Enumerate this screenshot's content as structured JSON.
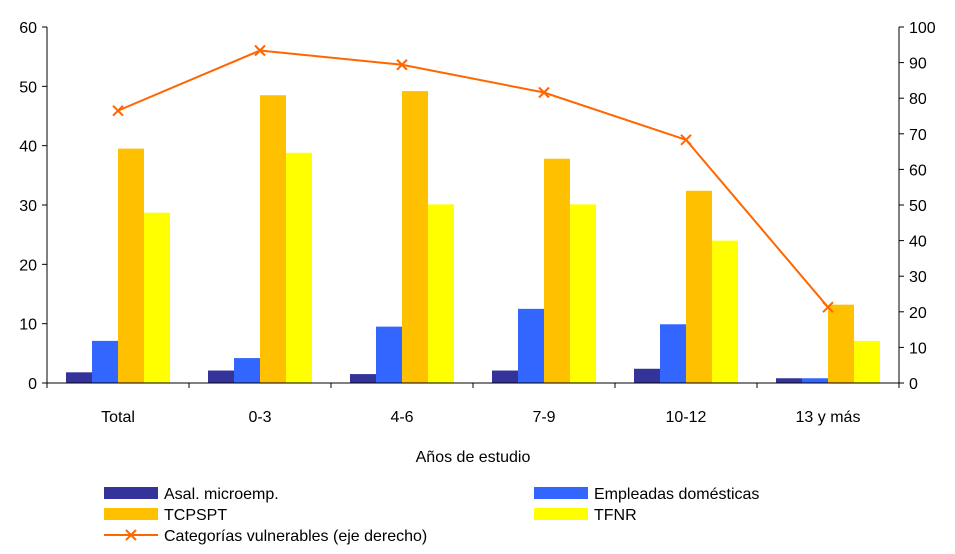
{
  "chart_data": {
    "type": "bar",
    "xlabel": "Años de estudio",
    "categories": [
      "Total",
      "0-3",
      "4-6",
      "7-9",
      "10-12",
      "13 y más"
    ],
    "y_left": {
      "range": [
        0,
        60
      ],
      "ticks": [
        "0",
        "10",
        "20",
        "30",
        "40",
        "50",
        "60"
      ]
    },
    "y_right": {
      "range": [
        0,
        100
      ],
      "ticks": [
        "0",
        "10",
        "20",
        "30",
        "40",
        "50",
        "60",
        "70",
        "80",
        "90",
        "100"
      ]
    },
    "series": [
      {
        "name": "Asal. microemp.",
        "type": "bar",
        "axis": "left",
        "color": "#333399",
        "values": [
          1.8,
          2.1,
          1.5,
          2.1,
          2.4,
          0.8
        ]
      },
      {
        "name": "Empleadas domésticas",
        "type": "bar",
        "axis": "left",
        "color": "#3366FF",
        "values": [
          7.1,
          4.2,
          9.5,
          12.5,
          9.9,
          0.8
        ]
      },
      {
        "name": "TCPSPT",
        "type": "bar",
        "axis": "left",
        "color": "#FFC000",
        "values": [
          39.5,
          48.5,
          49.2,
          37.8,
          32.4,
          13.2
        ]
      },
      {
        "name": "TFNR",
        "type": "bar",
        "axis": "left",
        "color": "#FFFF00",
        "values": [
          28.7,
          38.8,
          30.1,
          30.1,
          24.0,
          7.1
        ]
      },
      {
        "name": "Categorías vulnerables (eje derecho)",
        "type": "line",
        "axis": "right",
        "color": "#FF6600",
        "marker": "x",
        "values": [
          76.5,
          93.4,
          89.4,
          81.6,
          68.3,
          21.3
        ]
      }
    ],
    "grid": false,
    "legend_position": "bottom"
  }
}
